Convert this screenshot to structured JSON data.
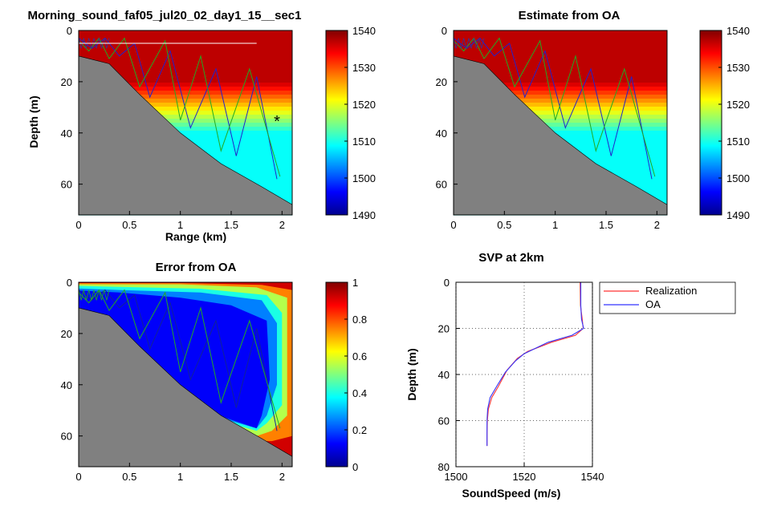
{
  "chart_data": [
    {
      "type": "heatmap",
      "title": "Morning_sound_faf05_jul20_02_day1_15__sec1",
      "xlabel": "Range (km)",
      "ylabel": "Depth (m)",
      "xlim": [
        0,
        2.1
      ],
      "ylim": [
        72,
        0
      ],
      "x_ticks": [
        "0",
        "0.5",
        "1",
        "1.5",
        "2"
      ],
      "y_ticks": [
        "0",
        "20",
        "40",
        "60"
      ],
      "colorbar": {
        "range": [
          1490,
          1540
        ],
        "ticks": [
          "1540",
          "1530",
          "1520",
          "1510",
          "1500",
          "1490"
        ],
        "colormap": "jet"
      },
      "sound_speed_profile": {
        "surface_value": 1537,
        "thermocline_top_depth": 20,
        "thermocline_bottom_depth": 40,
        "deep_value": 1509
      },
      "bathymetry": {
        "range_km": [
          0,
          0.3,
          0.6,
          1.0,
          1.4,
          1.8,
          2.1
        ],
        "depth_m": [
          10,
          13,
          25,
          40,
          52,
          61,
          68
        ]
      },
      "ray_paths": [
        {
          "color": "#2222cc",
          "range_km": [
            0,
            0.13,
            0.26,
            0.4,
            0.55,
            0.7,
            0.9,
            1.1,
            1.35,
            1.55,
            1.75,
            1.95
          ],
          "depth_m": [
            3,
            7,
            3,
            10,
            5,
            26,
            8,
            38,
            15,
            49,
            18,
            58
          ]
        },
        {
          "color": "#22aa22",
          "range_km": [
            0,
            0.1,
            0.2,
            0.3,
            0.45,
            0.6,
            0.85,
            1.0,
            1.2,
            1.4,
            1.68,
            1.98
          ],
          "depth_m": [
            4,
            8,
            3,
            11,
            3,
            22,
            4,
            35,
            10,
            47,
            15,
            57
          ]
        }
      ],
      "annotations": [
        {
          "type": "line",
          "color": "#ffffff",
          "x": [
            0,
            1.75
          ],
          "y": [
            5,
            5
          ]
        },
        {
          "type": "marker",
          "symbol": "*",
          "color": "#ff0000",
          "x": 1.95,
          "y": 35
        }
      ]
    },
    {
      "type": "heatmap",
      "title": "Estimate from OA",
      "xlim": [
        0,
        2.1
      ],
      "ylim": [
        72,
        0
      ],
      "x_ticks": [
        "0",
        "0.5",
        "1",
        "1.5",
        "2"
      ],
      "y_ticks": [
        "0",
        "20",
        "40",
        "60"
      ],
      "colorbar": {
        "range": [
          1490,
          1540
        ],
        "ticks": [
          "1540",
          "1530",
          "1520",
          "1510",
          "1500",
          "1490"
        ],
        "colormap": "jet"
      }
    },
    {
      "type": "heatmap",
      "title": "Error from OA",
      "xlim": [
        0,
        2.1
      ],
      "ylim": [
        72,
        0
      ],
      "x_ticks": [
        "0",
        "0.5",
        "1",
        "1.5",
        "2"
      ],
      "y_ticks": [
        "0",
        "20",
        "40",
        "60"
      ],
      "colorbar": {
        "range": [
          0,
          1
        ],
        "ticks": [
          "1",
          "0.8",
          "0.6",
          "0.4",
          "0.2",
          "0"
        ],
        "colormap": "jet"
      },
      "error_regions": [
        {
          "level": 0.45,
          "description": "outer shell"
        },
        {
          "level": 0.3,
          "description": "inner band"
        },
        {
          "level": 0.1,
          "description": "core"
        }
      ]
    },
    {
      "type": "line",
      "title": "SVP at 2km",
      "xlabel": "SoundSpeed (m/s)",
      "ylabel": "Depth (m)",
      "xlim": [
        1500,
        1540
      ],
      "ylim": [
        80,
        0
      ],
      "x_ticks": [
        "1500",
        "1520",
        "1540"
      ],
      "y_ticks": [
        "0",
        "20",
        "40",
        "60",
        "80"
      ],
      "grid": true,
      "legend_position": "top-right",
      "series": [
        {
          "name": "Realization",
          "color": "#ff3333",
          "x": [
            1536.4,
            1536.5,
            1537.0,
            1537.3,
            1535.0,
            1528.0,
            1521.0,
            1518.0,
            1515.0,
            1512.5,
            1510.5,
            1509.5,
            1509.2,
            1509.1,
            1509.1
          ],
          "y": [
            0,
            10,
            16,
            20,
            23,
            26,
            30,
            33,
            38,
            45,
            50,
            55,
            60,
            66,
            71
          ]
        },
        {
          "name": "OA",
          "color": "#3333ff",
          "x": [
            1536.6,
            1536.6,
            1536.8,
            1537.4,
            1534.0,
            1527.0,
            1520.0,
            1517.5,
            1514.5,
            1512.0,
            1510.0,
            1509.3,
            1509.1,
            1509.1,
            1509.1
          ],
          "y": [
            0,
            10,
            16,
            20,
            23,
            26,
            31,
            34,
            39,
            45,
            50,
            55,
            60,
            66,
            71
          ]
        }
      ]
    }
  ]
}
